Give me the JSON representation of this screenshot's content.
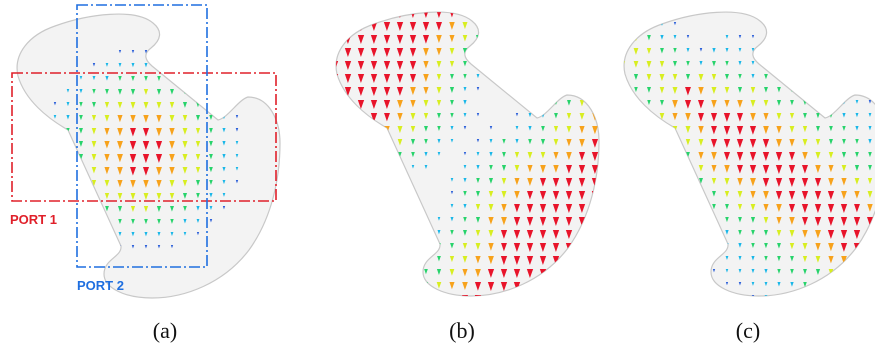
{
  "figure": {
    "panels": [
      {
        "id": "a",
        "label": "(a)",
        "pattern": "rings",
        "show_ports": true
      },
      {
        "id": "b",
        "label": "(b)",
        "pattern": "split",
        "show_ports": false
      },
      {
        "id": "c",
        "label": "(c)",
        "pattern": "bands",
        "show_ports": false
      }
    ],
    "ports": [
      {
        "id": "port1",
        "label": "PORT 1",
        "color": "#e0202a"
      },
      {
        "id": "port2",
        "label": "PORT 2",
        "color": "#1f6fe0"
      }
    ],
    "colors": {
      "shape_fill": "#f3f3f3",
      "shape_stroke": "#c8c8c8",
      "colormap": [
        "#2b5fd9",
        "#19b7e8",
        "#27d36b",
        "#d8ee20",
        "#f7a21b",
        "#e8142a"
      ]
    }
  }
}
